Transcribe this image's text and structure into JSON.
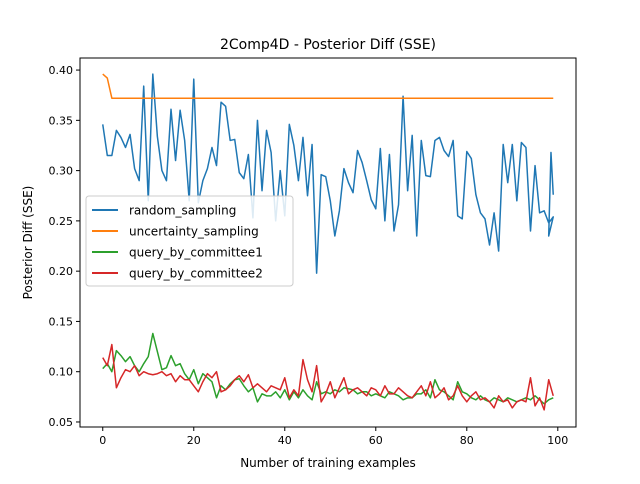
{
  "chart_data": {
    "type": "line",
    "title": "2Comp4D - Posterior Diff (SSE)",
    "xlabel": "Number of training examples",
    "ylabel": "Posterior Diff (SSE)",
    "xlim": [
      -5,
      104
    ],
    "ylim": [
      0.045,
      0.412
    ],
    "xticks": [
      0,
      20,
      40,
      60,
      80,
      100
    ],
    "xtick_labels": [
      "0",
      "20",
      "40",
      "60",
      "80",
      "100"
    ],
    "yticks": [
      0.05,
      0.1,
      0.15,
      0.2,
      0.25,
      0.3,
      0.35,
      0.4
    ],
    "ytick_labels": [
      "0.05",
      "0.10",
      "0.15",
      "0.20",
      "0.25",
      "0.30",
      "0.35",
      "0.40"
    ],
    "grid": false,
    "legend_position": "center-left",
    "x": [
      0,
      1,
      2,
      3,
      4,
      5,
      6,
      7,
      8,
      9,
      10,
      11,
      12,
      13,
      14,
      15,
      16,
      17,
      18,
      19,
      20,
      21,
      22,
      23,
      24,
      25,
      26,
      27,
      28,
      29,
      30,
      31,
      32,
      33,
      34,
      35,
      36,
      37,
      38,
      39,
      40,
      41,
      42,
      43,
      44,
      45,
      46,
      47,
      48,
      49,
      50,
      51,
      52,
      53,
      54,
      55,
      56,
      57,
      58,
      59,
      60,
      61,
      62,
      63,
      64,
      65,
      66,
      67,
      68,
      69,
      70,
      71,
      72,
      73,
      74,
      75,
      76,
      77,
      78,
      79,
      80,
      81,
      82,
      83,
      84,
      85,
      86,
      87,
      88,
      89,
      90,
      91,
      92,
      93,
      94,
      95,
      96,
      97,
      98,
      99
    ],
    "series": [
      {
        "name": "random_sampling",
        "color": "#1f77b4",
        "values": [
          0.346,
          0.315,
          0.315,
          0.34,
          0.333,
          0.323,
          0.336,
          0.302,
          0.29,
          0.384,
          0.27,
          0.396,
          0.334,
          0.3,
          0.29,
          0.361,
          0.31,
          0.36,
          0.33,
          0.27,
          0.391,
          0.268,
          0.29,
          0.302,
          0.323,
          0.305,
          0.368,
          0.364,
          0.33,
          0.331,
          0.298,
          0.292,
          0.316,
          0.253,
          0.35,
          0.28,
          0.34,
          0.318,
          0.25,
          0.3,
          0.255,
          0.346,
          0.325,
          0.29,
          0.333,
          0.275,
          0.326,
          0.198,
          0.296,
          0.294,
          0.27,
          0.235,
          0.26,
          0.302,
          0.288,
          0.278,
          0.32,
          0.308,
          0.29,
          0.271,
          0.262,
          0.322,
          0.25,
          0.316,
          0.24,
          0.266,
          0.374,
          0.28,
          0.335,
          0.235,
          0.33,
          0.295,
          0.294,
          0.33,
          0.333,
          0.32,
          0.314,
          0.33,
          0.255,
          0.252,
          0.319,
          0.312,
          0.276,
          0.258,
          0.252,
          0.226,
          0.258,
          0.22,
          0.326,
          0.288,
          0.326,
          0.27,
          0.328,
          0.323,
          0.24,
          0.305,
          0.258,
          0.26,
          0.248,
          0.254
        ],
        "tail": [
          0.235,
          0.318,
          0.276
        ]
      },
      {
        "name": "uncertainty_sampling",
        "color": "#ff7f0e",
        "values": [
          0.396,
          0.392,
          0.372,
          0.372,
          0.372,
          0.372,
          0.372,
          0.372,
          0.372,
          0.372,
          0.372,
          0.372,
          0.372,
          0.372,
          0.372,
          0.372,
          0.372,
          0.372,
          0.372,
          0.372,
          0.372,
          0.372,
          0.372,
          0.372,
          0.372,
          0.372,
          0.372,
          0.372,
          0.372,
          0.372,
          0.372,
          0.372,
          0.372,
          0.372,
          0.372,
          0.372,
          0.372,
          0.372,
          0.372,
          0.372,
          0.372,
          0.372,
          0.372,
          0.372,
          0.372,
          0.372,
          0.372,
          0.372,
          0.372,
          0.372,
          0.372,
          0.372,
          0.372,
          0.372,
          0.372,
          0.372,
          0.372,
          0.372,
          0.372,
          0.372,
          0.372,
          0.372,
          0.372,
          0.372,
          0.372,
          0.372,
          0.372,
          0.372,
          0.372,
          0.372,
          0.372,
          0.372,
          0.372,
          0.372,
          0.372,
          0.372,
          0.372,
          0.372,
          0.372,
          0.372,
          0.372,
          0.372,
          0.372,
          0.372,
          0.372,
          0.372,
          0.372,
          0.372,
          0.372,
          0.372,
          0.372,
          0.372,
          0.372,
          0.372,
          0.372,
          0.372,
          0.372,
          0.372,
          0.372,
          0.372
        ]
      },
      {
        "name": "query_by_committee1",
        "color": "#2ca02c",
        "values": [
          0.103,
          0.108,
          0.1,
          0.121,
          0.116,
          0.11,
          0.115,
          0.106,
          0.1,
          0.108,
          0.115,
          0.138,
          0.12,
          0.102,
          0.104,
          0.116,
          0.106,
          0.108,
          0.098,
          0.092,
          0.102,
          0.088,
          0.098,
          0.094,
          0.09,
          0.074,
          0.086,
          0.082,
          0.088,
          0.092,
          0.093,
          0.086,
          0.08,
          0.084,
          0.07,
          0.078,
          0.076,
          0.076,
          0.08,
          0.074,
          0.082,
          0.072,
          0.08,
          0.074,
          0.082,
          0.076,
          0.072,
          0.09,
          0.078,
          0.08,
          0.078,
          0.082,
          0.08,
          0.084,
          0.083,
          0.082,
          0.078,
          0.08,
          0.08,
          0.076,
          0.078,
          0.076,
          0.074,
          0.08,
          0.078,
          0.076,
          0.072,
          0.074,
          0.074,
          0.078,
          0.078,
          0.082,
          0.074,
          0.092,
          0.082,
          0.08,
          0.076,
          0.072,
          0.09,
          0.08,
          0.078,
          0.074,
          0.072,
          0.076,
          0.072,
          0.07,
          0.074,
          0.072,
          0.07,
          0.074,
          0.072,
          0.07,
          0.072,
          0.074,
          0.072,
          0.076,
          0.072,
          0.068,
          0.072,
          0.074
        ]
      },
      {
        "name": "query_by_committee2",
        "color": "#d62728",
        "values": [
          0.114,
          0.106,
          0.127,
          0.084,
          0.094,
          0.102,
          0.1,
          0.106,
          0.096,
          0.1,
          0.098,
          0.097,
          0.098,
          0.1,
          0.096,
          0.098,
          0.09,
          0.096,
          0.092,
          0.092,
          0.086,
          0.08,
          0.09,
          0.098,
          0.094,
          0.1,
          0.08,
          0.082,
          0.086,
          0.092,
          0.096,
          0.09,
          0.097,
          0.084,
          0.088,
          0.084,
          0.08,
          0.086,
          0.084,
          0.082,
          0.094,
          0.074,
          0.082,
          0.076,
          0.112,
          0.092,
          0.08,
          0.106,
          0.07,
          0.078,
          0.09,
          0.074,
          0.084,
          0.094,
          0.078,
          0.082,
          0.084,
          0.08,
          0.076,
          0.084,
          0.082,
          0.076,
          0.086,
          0.078,
          0.078,
          0.084,
          0.08,
          0.076,
          0.074,
          0.08,
          0.086,
          0.076,
          0.09,
          0.074,
          0.078,
          0.084,
          0.072,
          0.076,
          0.086,
          0.076,
          0.07,
          0.076,
          0.08,
          0.072,
          0.074,
          0.07,
          0.064,
          0.076,
          0.07,
          0.072,
          0.064,
          0.07,
          0.072,
          0.07,
          0.094,
          0.066,
          0.074,
          0.062,
          0.092,
          0.076
        ]
      }
    ]
  }
}
